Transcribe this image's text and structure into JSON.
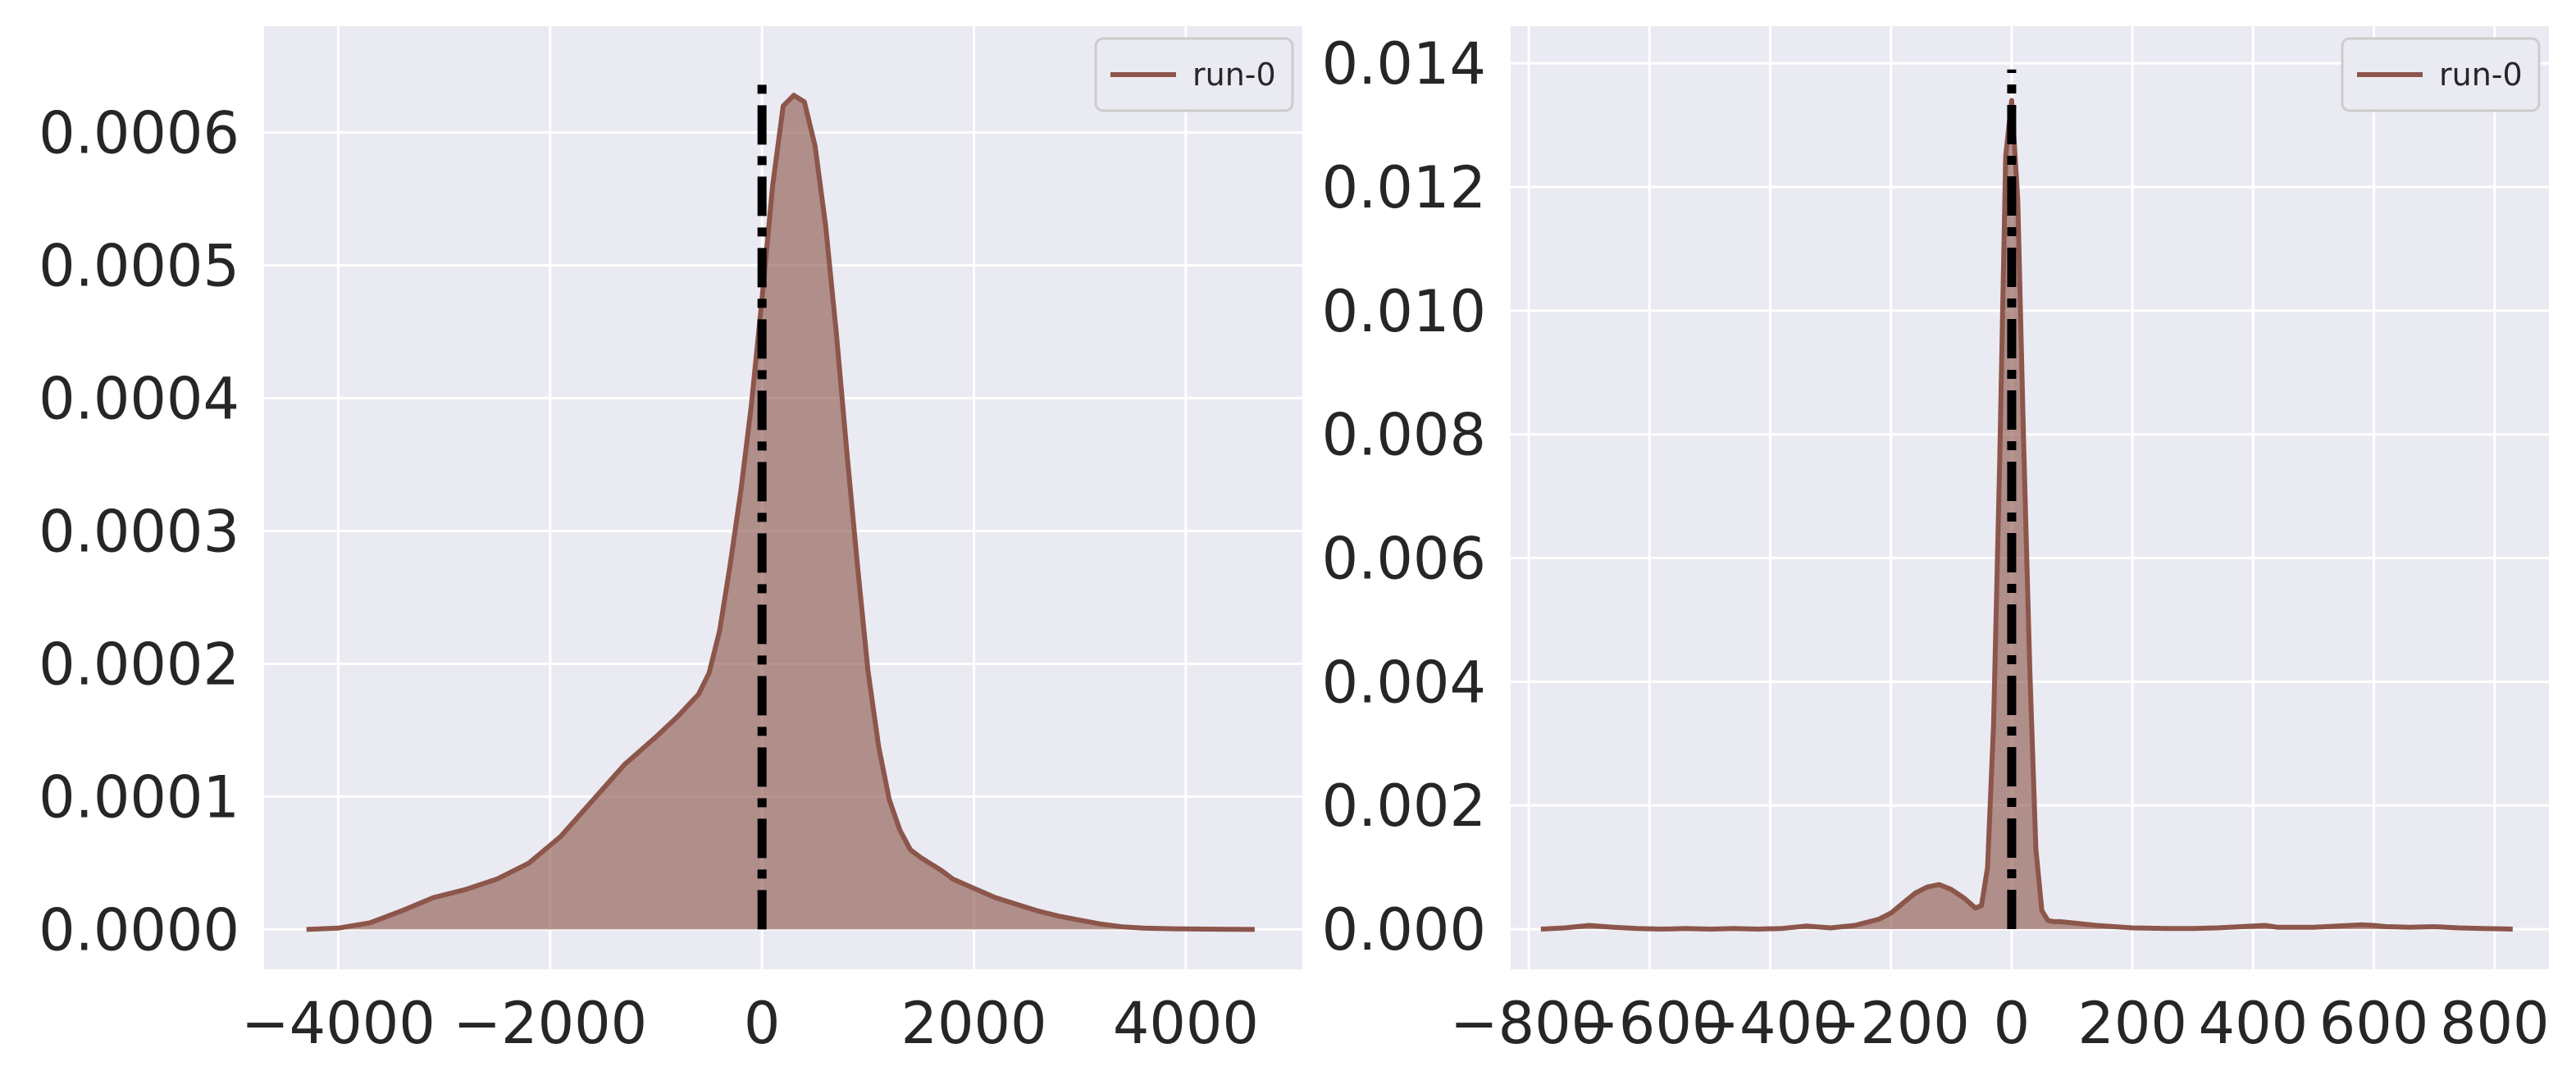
{
  "chart_data": [
    {
      "type": "area",
      "xlim": [
        -4700,
        5100
      ],
      "ylim": [
        -3e-05,
        0.00068
      ],
      "xticks": [
        -4000,
        -2000,
        0,
        2000,
        4000
      ],
      "xtick_labels": [
        "−4000",
        "−2000",
        "0",
        "2000",
        "4000"
      ],
      "yticks": [
        0,
        0.0001,
        0.0002,
        0.0003,
        0.0004,
        0.0005,
        0.0006
      ],
      "ytick_labels": [
        "0.0000",
        "0.0001",
        "0.0002",
        "0.0003",
        "0.0004",
        "0.0005",
        "0.0006"
      ],
      "grid": true,
      "legend": {
        "position": "top-right",
        "entries": [
          "run-0"
        ]
      },
      "vline": {
        "x": 0,
        "y_top": 0.00064,
        "style": "dash-dot",
        "color": "#000000"
      },
      "series": [
        {
          "name": "run-0",
          "color": "#8c564b",
          "x": [
            -4300,
            -4000,
            -3700,
            -3400,
            -3100,
            -2800,
            -2500,
            -2200,
            -1900,
            -1600,
            -1300,
            -1000,
            -800,
            -600,
            -500,
            -400,
            -300,
            -200,
            -100,
            0,
            100,
            200,
            300,
            400,
            500,
            600,
            700,
            800,
            900,
            1000,
            1100,
            1200,
            1300,
            1400,
            1500,
            1600,
            1700,
            1800,
            2000,
            2200,
            2400,
            2600,
            2800,
            3000,
            3200,
            3400,
            3600,
            3900,
            4300,
            4650
          ],
          "y": [
            0,
            1e-06,
            5e-06,
            1.4e-05,
            2.4e-05,
            3e-05,
            3.8e-05,
            5e-05,
            7e-05,
            9.7e-05,
            0.000124,
            0.000145,
            0.00016,
            0.000177,
            0.000193,
            0.000225,
            0.000275,
            0.00033,
            0.000395,
            0.000475,
            0.00056,
            0.00062,
            0.000628,
            0.000623,
            0.00059,
            0.00053,
            0.00045,
            0.00036,
            0.000275,
            0.000195,
            0.000138,
            9.8e-05,
            7.5e-05,
            6e-05,
            5.4e-05,
            4.9e-05,
            4.4e-05,
            3.8e-05,
            3.1e-05,
            2.4e-05,
            1.9e-05,
            1.4e-05,
            1e-05,
            7e-06,
            4e-06,
            2e-06,
            1e-06,
            5e-07,
            2e-07,
            0
          ]
        }
      ]
    },
    {
      "type": "area",
      "xlim": [
        -830,
        890
      ],
      "ylim": [
        -0.00065,
        0.0146
      ],
      "xticks": [
        -800,
        -600,
        -400,
        -200,
        0,
        200,
        400,
        600,
        800
      ],
      "xtick_labels": [
        "−800",
        "−600",
        "−400",
        "−200",
        "0",
        "200",
        "400",
        "600",
        "800"
      ],
      "yticks": [
        0,
        0.002,
        0.004,
        0.006,
        0.008,
        0.01,
        0.012,
        0.014
      ],
      "ytick_labels": [
        "0.000",
        "0.002",
        "0.004",
        "0.006",
        "0.008",
        "0.010",
        "0.012",
        "0.014"
      ],
      "grid": true,
      "legend": {
        "position": "top-right",
        "entries": [
          "run-0"
        ]
      },
      "vline": {
        "x": 0,
        "y_top": 0.0139,
        "style": "dash-dot",
        "color": "#000000"
      },
      "series": [
        {
          "name": "run-0",
          "color": "#8c564b",
          "x": [
            -780,
            -740,
            -700,
            -660,
            -620,
            -580,
            -540,
            -500,
            -460,
            -420,
            -380,
            -340,
            -300,
            -260,
            -220,
            -200,
            -180,
            -160,
            -140,
            -120,
            -100,
            -80,
            -60,
            -50,
            -40,
            -30,
            -20,
            -10,
            0,
            10,
            20,
            30,
            40,
            50,
            60,
            70,
            80,
            100,
            140,
            200,
            260,
            300,
            340,
            380,
            420,
            440,
            460,
            500,
            540,
            580,
            600,
            620,
            660,
            700,
            740,
            780,
            830
          ],
          "y": [
            0,
            2e-05,
            6e-05,
            3e-05,
            1e-05,
            0,
            1e-05,
            0,
            1e-05,
            0,
            1e-05,
            5e-05,
            2e-05,
            6e-05,
            0.00016,
            0.00026,
            0.00042,
            0.00058,
            0.00068,
            0.00072,
            0.00064,
            0.00051,
            0.00034,
            0.00038,
            0.001,
            0.0033,
            0.0075,
            0.0125,
            0.0134,
            0.0118,
            0.0078,
            0.0042,
            0.0013,
            0.0003,
            0.00014,
            0.00012,
            0.00012,
            0.0001,
            6e-05,
            2e-05,
            1e-05,
            1e-05,
            2e-05,
            4e-05,
            6e-05,
            3e-05,
            3e-05,
            3e-05,
            5e-05,
            7e-05,
            6e-05,
            4e-05,
            3e-05,
            4e-05,
            2e-05,
            1e-05,
            0
          ]
        }
      ]
    }
  ]
}
